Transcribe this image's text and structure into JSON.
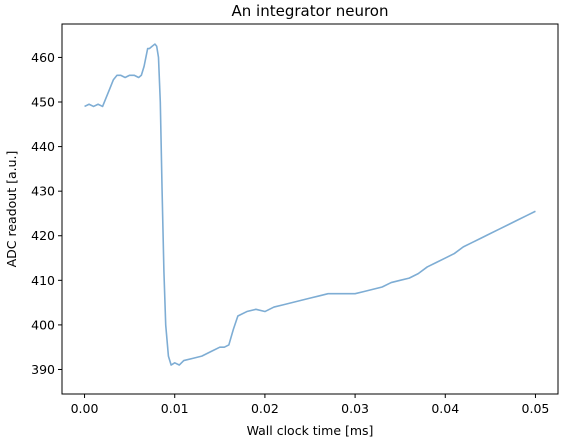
{
  "chart_data": {
    "type": "line",
    "title": "An integrator neuron",
    "xlabel": "Wall clock time [ms]",
    "ylabel": "ADC readout [a.u.]",
    "xlim": [
      -0.0025,
      0.0525
    ],
    "ylim": [
      384.5,
      467.5
    ],
    "xticks": [
      0.0,
      0.01,
      0.02,
      0.03,
      0.04,
      0.05
    ],
    "xtick_labels": [
      "0.00",
      "0.01",
      "0.02",
      "0.03",
      "0.04",
      "0.05"
    ],
    "yticks": [
      390,
      400,
      410,
      420,
      430,
      440,
      450,
      460
    ],
    "ytick_labels": [
      "390",
      "400",
      "410",
      "420",
      "430",
      "440",
      "450",
      "460"
    ],
    "grid": false,
    "series": [
      {
        "color": "#7eadd4",
        "x": [
          0.0,
          0.0005,
          0.001,
          0.0015,
          0.002,
          0.0024,
          0.0028,
          0.0032,
          0.0036,
          0.004,
          0.0045,
          0.005,
          0.0055,
          0.006,
          0.0063,
          0.0066,
          0.0068,
          0.007,
          0.0072,
          0.0075,
          0.0078,
          0.008,
          0.0082,
          0.0084,
          0.0086,
          0.0088,
          0.009,
          0.0093,
          0.0096,
          0.01,
          0.0105,
          0.011,
          0.012,
          0.013,
          0.014,
          0.015,
          0.0155,
          0.016,
          0.0165,
          0.017,
          0.018,
          0.019,
          0.02,
          0.021,
          0.022,
          0.023,
          0.024,
          0.025,
          0.026,
          0.027,
          0.028,
          0.029,
          0.03,
          0.031,
          0.032,
          0.033,
          0.034,
          0.035,
          0.036,
          0.037,
          0.038,
          0.039,
          0.04,
          0.041,
          0.042,
          0.043,
          0.044,
          0.045,
          0.046,
          0.047,
          0.048,
          0.049,
          0.05
        ],
        "values": [
          449,
          449.5,
          449,
          449.5,
          449,
          451,
          453,
          455,
          456,
          456,
          455.5,
          456,
          456,
          455.5,
          456,
          458,
          460,
          462,
          462,
          462.5,
          463,
          462.5,
          460,
          450,
          430,
          412,
          400,
          393,
          391,
          391.5,
          391,
          392,
          392.5,
          393,
          394,
          395,
          395,
          395.5,
          399,
          402,
          403,
          403.5,
          403,
          404,
          404.5,
          405,
          405.5,
          406,
          406.5,
          407,
          407,
          407,
          407,
          407.5,
          408,
          408.5,
          409.5,
          410,
          410.5,
          411.5,
          413,
          414,
          415,
          416,
          417.5,
          418.5,
          419.5,
          420.5,
          421.5,
          422.5,
          423.5,
          424.5,
          425.5
        ]
      }
    ]
  }
}
